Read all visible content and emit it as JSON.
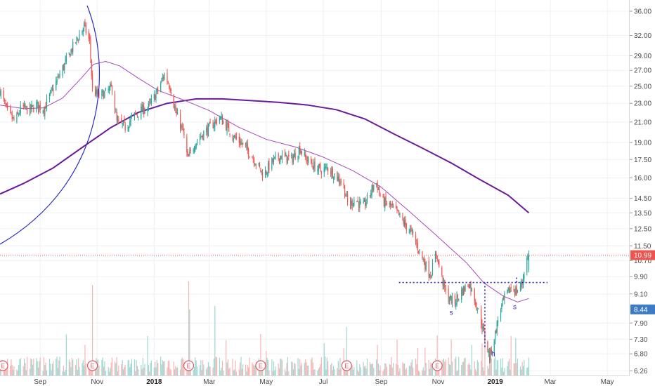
{
  "chart_data": {
    "type": "candlestick",
    "y_scale": "log",
    "ylim": [
      6.1,
      37.5
    ],
    "xlim": [
      "2017-07-20",
      "2019-05-25"
    ],
    "grid": true,
    "y_ticks": [
      "36.00",
      "32.00",
      "29.00",
      "27.00",
      "25.00",
      "23.00",
      "21.00",
      "19.00",
      "17.50",
      "16.00",
      "14.50",
      "13.50",
      "12.50",
      "11.50",
      "10.70",
      "9.90",
      "9.10",
      "7.90",
      "7.30",
      "6.80",
      "6.26"
    ],
    "x_ticks": [
      {
        "label": "Sep",
        "date": "2017-09-01",
        "bold": false
      },
      {
        "label": "Nov",
        "date": "2017-11-01",
        "bold": false
      },
      {
        "label": "2018",
        "date": "2018-01-01",
        "bold": true
      },
      {
        "label": "Mar",
        "date": "2018-03-01",
        "bold": false
      },
      {
        "label": "May",
        "date": "2018-05-01",
        "bold": false
      },
      {
        "label": "Jul",
        "date": "2018-07-01",
        "bold": false
      },
      {
        "label": "Sep",
        "date": "2018-09-01",
        "bold": false
      },
      {
        "label": "Nov",
        "date": "2018-11-01",
        "bold": false
      },
      {
        "label": "2019",
        "date": "2019-01-01",
        "bold": true
      },
      {
        "label": "Mar",
        "date": "2019-03-01",
        "bold": false
      },
      {
        "label": "May",
        "date": "2019-05-01",
        "bold": false
      }
    ],
    "price_path": [
      [
        "2017-07-20",
        24.5
      ],
      [
        "2017-07-28",
        22.0
      ],
      [
        "2017-08-05",
        21.0
      ],
      [
        "2017-08-12",
        22.6
      ],
      [
        "2017-08-20",
        22.2
      ],
      [
        "2017-08-28",
        22.8
      ],
      [
        "2017-09-05",
        22.4
      ],
      [
        "2017-09-12",
        24.0
      ],
      [
        "2017-09-20",
        26.0
      ],
      [
        "2017-09-28",
        28.0
      ],
      [
        "2017-10-05",
        30.0
      ],
      [
        "2017-10-12",
        31.8
      ],
      [
        "2017-10-18",
        33.5
      ],
      [
        "2017-10-24",
        31.0
      ],
      [
        "2017-10-27",
        24.5
      ],
      [
        "2017-11-03",
        23.8
      ],
      [
        "2017-11-10",
        24.2
      ],
      [
        "2017-11-17",
        24.8
      ],
      [
        "2017-11-22",
        21.0
      ],
      [
        "2017-12-01",
        20.5
      ],
      [
        "2017-12-10",
        21.6
      ],
      [
        "2017-12-18",
        22.2
      ],
      [
        "2017-12-26",
        22.6
      ],
      [
        "2018-01-05",
        24.5
      ],
      [
        "2018-01-12",
        26.5
      ],
      [
        "2018-01-18",
        25.0
      ],
      [
        "2018-01-24",
        22.0
      ],
      [
        "2018-02-01",
        20.0
      ],
      [
        "2018-02-06",
        17.5
      ],
      [
        "2018-02-14",
        19.0
      ],
      [
        "2018-02-22",
        19.8
      ],
      [
        "2018-03-02",
        20.5
      ],
      [
        "2018-03-12",
        21.5
      ],
      [
        "2018-03-20",
        20.5
      ],
      [
        "2018-03-28",
        19.5
      ],
      [
        "2018-04-06",
        18.8
      ],
      [
        "2018-04-14",
        18.0
      ],
      [
        "2018-04-22",
        17.0
      ],
      [
        "2018-04-28",
        16.2
      ],
      [
        "2018-05-06",
        17.2
      ],
      [
        "2018-05-16",
        17.8
      ],
      [
        "2018-05-28",
        17.5
      ],
      [
        "2018-06-06",
        18.5
      ],
      [
        "2018-06-12",
        17.6
      ],
      [
        "2018-06-20",
        17.0
      ],
      [
        "2018-06-28",
        16.6
      ],
      [
        "2018-07-06",
        16.8
      ],
      [
        "2018-07-14",
        16.2
      ],
      [
        "2018-07-22",
        15.6
      ],
      [
        "2018-07-28",
        13.9
      ],
      [
        "2018-08-04",
        14.5
      ],
      [
        "2018-08-12",
        13.8
      ],
      [
        "2018-08-20",
        14.8
      ],
      [
        "2018-08-26",
        15.8
      ],
      [
        "2018-09-02",
        14.3
      ],
      [
        "2018-09-10",
        14.0
      ],
      [
        "2018-09-18",
        13.5
      ],
      [
        "2018-09-26",
        12.8
      ],
      [
        "2018-10-04",
        12.2
      ],
      [
        "2018-10-12",
        11.2
      ],
      [
        "2018-10-20",
        10.3
      ],
      [
        "2018-10-24",
        10.0
      ],
      [
        "2018-10-30",
        11.1
      ],
      [
        "2018-11-04",
        10.0
      ],
      [
        "2018-11-10",
        9.0
      ],
      [
        "2018-11-18",
        8.7
      ],
      [
        "2018-11-26",
        9.2
      ],
      [
        "2018-12-04",
        9.6
      ],
      [
        "2018-12-10",
        8.9
      ],
      [
        "2018-12-16",
        8.1
      ],
      [
        "2018-12-22",
        7.2
      ],
      [
        "2018-12-26",
        6.7
      ],
      [
        "2019-01-01",
        7.5
      ],
      [
        "2019-01-06",
        8.4
      ],
      [
        "2019-01-12",
        9.0
      ],
      [
        "2019-01-18",
        9.4
      ],
      [
        "2019-01-24",
        9.2
      ],
      [
        "2019-01-30",
        9.6
      ],
      [
        "2019-02-02",
        10.5
      ],
      [
        "2019-02-06",
        10.99
      ]
    ],
    "ma_short": [
      [
        "2017-07-20",
        22.8
      ],
      [
        "2017-08-15",
        22.4
      ],
      [
        "2017-09-05",
        22.5
      ],
      [
        "2017-09-25",
        23.6
      ],
      [
        "2017-10-15",
        26.0
      ],
      [
        "2017-10-28",
        27.8
      ],
      [
        "2017-11-10",
        28.2
      ],
      [
        "2017-11-25",
        27.6
      ],
      [
        "2017-12-15",
        26.0
      ],
      [
        "2018-01-05",
        24.5
      ],
      [
        "2018-02-01",
        23.4
      ],
      [
        "2018-03-01",
        22.2
      ],
      [
        "2018-04-01",
        20.5
      ],
      [
        "2018-05-01",
        19.3
      ],
      [
        "2018-06-01",
        18.6
      ],
      [
        "2018-07-01",
        17.7
      ],
      [
        "2018-08-01",
        16.6
      ],
      [
        "2018-09-01",
        15.3
      ],
      [
        "2018-10-01",
        13.6
      ],
      [
        "2018-11-01",
        12.0
      ],
      [
        "2018-12-01",
        10.6
      ],
      [
        "2018-12-20",
        9.6
      ],
      [
        "2019-01-10",
        9.0
      ],
      [
        "2019-01-25",
        8.75
      ],
      [
        "2019-02-06",
        8.9
      ]
    ],
    "ma_long": [
      [
        "2017-07-20",
        14.8
      ],
      [
        "2017-08-15",
        15.6
      ],
      [
        "2017-09-15",
        16.8
      ],
      [
        "2017-10-15",
        18.5
      ],
      [
        "2017-11-15",
        20.4
      ],
      [
        "2017-12-15",
        22.0
      ],
      [
        "2018-01-15",
        23.0
      ],
      [
        "2018-02-15",
        23.5
      ],
      [
        "2018-03-15",
        23.5
      ],
      [
        "2018-04-15",
        23.3
      ],
      [
        "2018-05-15",
        23.1
      ],
      [
        "2018-06-15",
        22.8
      ],
      [
        "2018-07-15",
        22.3
      ],
      [
        "2018-08-15",
        21.3
      ],
      [
        "2018-09-15",
        19.8
      ],
      [
        "2018-10-15",
        18.5
      ],
      [
        "2018-11-15",
        17.2
      ],
      [
        "2018-12-15",
        15.9
      ],
      [
        "2019-01-15",
        14.7
      ],
      [
        "2019-02-06",
        13.5
      ]
    ],
    "last_price": {
      "value": 10.99,
      "label": "10.99",
      "color": "#ef5350"
    },
    "marker_price": {
      "value": 8.44,
      "label": "8.44",
      "color": "#3d7cc4"
    },
    "neckline": {
      "value": 9.62,
      "from": "2018-09-20",
      "to": "2019-02-26",
      "color": "#2b2bbf"
    },
    "pattern_labels": [
      {
        "text": "s",
        "date": "2018-11-15",
        "value": 8.22
      },
      {
        "text": "s",
        "date": "2019-01-22",
        "value": 8.45
      },
      {
        "text": "h",
        "date": "2018-12-30",
        "value": 6.72
      }
    ],
    "earnings_dates": [
      "2017-07-23",
      "2017-10-27",
      "2018-02-07",
      "2018-04-25",
      "2018-07-26",
      "2018-10-31"
    ],
    "earnings_label": "E",
    "colors": {
      "up": "#26a69a",
      "down": "#ef5350",
      "ma_short": "#ab47bc",
      "ma_long": "#6a1b9a",
      "arc": "#2b2bbf"
    }
  }
}
